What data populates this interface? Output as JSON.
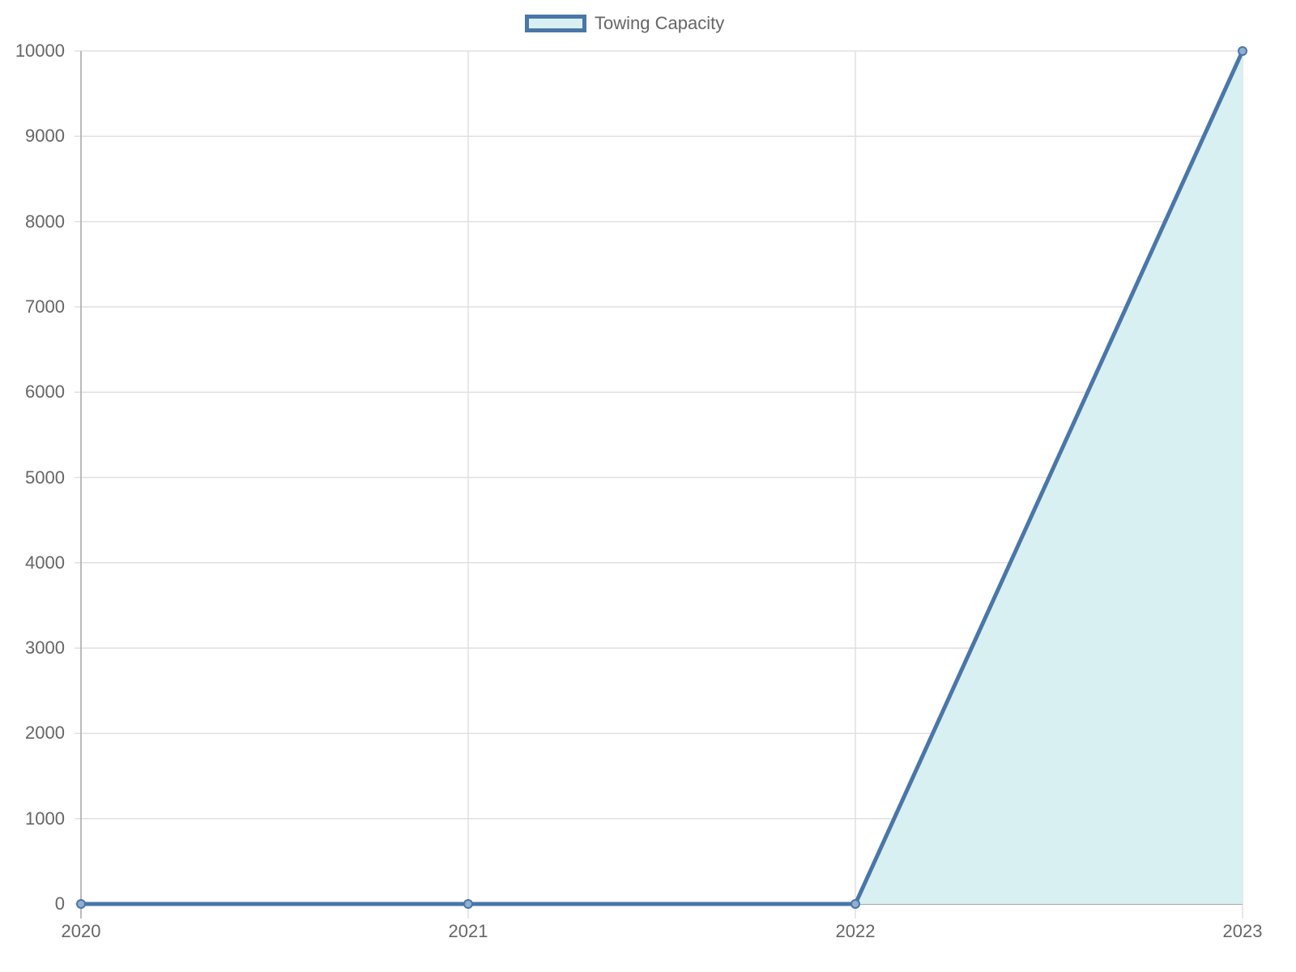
{
  "chart_data": {
    "type": "area",
    "title": "",
    "xlabel": "",
    "ylabel": "",
    "categories": [
      "2020",
      "2021",
      "2022",
      "2023"
    ],
    "series": [
      {
        "name": "Towing Capacity",
        "values": [
          0,
          0,
          0,
          10000
        ]
      }
    ],
    "ylim": [
      0,
      10000
    ],
    "yticks": [
      0,
      1000,
      2000,
      3000,
      4000,
      5000,
      6000,
      7000,
      8000,
      9000,
      10000
    ],
    "grid": true,
    "legend_position": "top",
    "colors": {
      "line": "#4a76a8",
      "fill": "#d8f0f2",
      "grid": "#e0e0e0",
      "axis": "#aaaaaa",
      "text": "#666666"
    }
  },
  "legend": {
    "label": "Towing Capacity"
  },
  "yaxis": {
    "ticks": [
      "0",
      "1000",
      "2000",
      "3000",
      "4000",
      "5000",
      "6000",
      "7000",
      "8000",
      "9000",
      "10000"
    ]
  },
  "xaxis": {
    "ticks": [
      "2020",
      "2021",
      "2022",
      "2023"
    ]
  }
}
